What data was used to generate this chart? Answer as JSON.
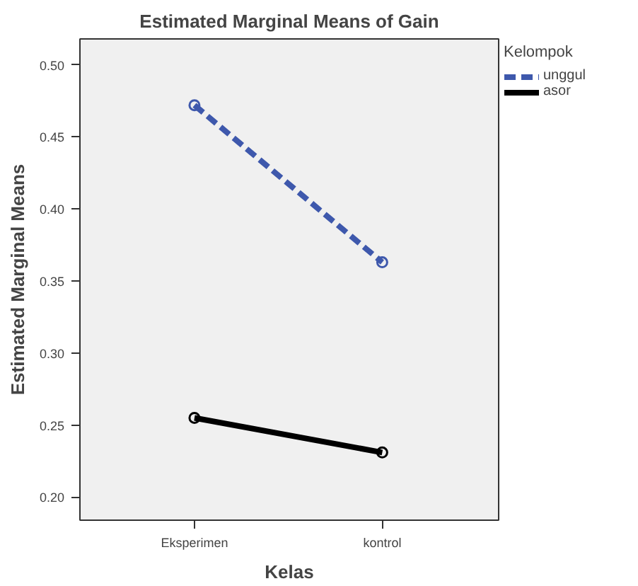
{
  "chart_data": {
    "type": "line",
    "title": "Estimated Marginal Means of Gain",
    "xlabel": "Kelas",
    "ylabel": "Estimated Marginal Means",
    "legend_title": "Kelompok",
    "categories": [
      "Eksperimen",
      "kontrol"
    ],
    "series": [
      {
        "name": "unggul",
        "color": "#3e58ac",
        "values": [
          0.472,
          0.363
        ],
        "line_style": "dashed"
      },
      {
        "name": "asor",
        "color": "#000000",
        "values": [
          0.255,
          0.231
        ],
        "line_style": "solid"
      }
    ],
    "ylim": [
      0.184,
      0.518
    ],
    "yticks": [
      {
        "value": 0.2,
        "label": "0.20"
      },
      {
        "value": 0.25,
        "label": "0.25"
      },
      {
        "value": 0.3,
        "label": "0.30"
      },
      {
        "value": 0.35,
        "label": "0.35"
      },
      {
        "value": 0.4,
        "label": "0.40"
      },
      {
        "value": 0.45,
        "label": "0.45"
      },
      {
        "value": 0.5,
        "label": "0.50"
      }
    ],
    "marker": "circle",
    "legend": "right",
    "grid": false
  }
}
